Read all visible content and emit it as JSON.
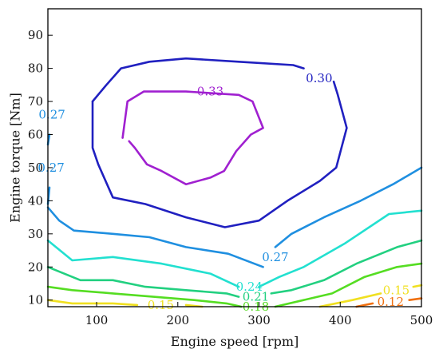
{
  "chart_data": {
    "type": "contour",
    "xlabel": "Engine speed [rpm]",
    "ylabel": "Engine torque [Nm]",
    "xlim": [
      40,
      500
    ],
    "ylim": [
      8,
      98
    ],
    "xticks": [
      "100",
      "200",
      "300",
      "400",
      "500"
    ],
    "yticks": [
      "10",
      "20",
      "30",
      "40",
      "50",
      "60",
      "70",
      "80",
      "90"
    ],
    "grid": false,
    "contours": [
      {
        "level": 0.33,
        "color": "#a020d0",
        "segments": [
          [
            [
              132,
              59
            ],
            [
              138,
              70
            ],
            [
              158,
              73
            ],
            [
              210,
              73
            ],
            [
              275,
              72
            ],
            [
              292,
              70
            ],
            [
              305,
              62
            ],
            [
              290,
              60
            ],
            [
              272,
              55
            ],
            [
              257,
              49
            ],
            [
              240,
              47
            ],
            [
              210,
              45
            ],
            [
              180,
              49
            ],
            [
              162,
              51
            ],
            [
              147,
              56
            ],
            [
              140,
              58
            ]
          ]
        ],
        "labels": [
          {
            "text": "0.33",
            "x": 240,
            "y": 73
          }
        ]
      },
      {
        "level": 0.3,
        "color": "#2020c0",
        "segments": [
          [
            [
              95,
              70
            ],
            [
              112,
              75
            ],
            [
              130,
              80
            ],
            [
              165,
              82
            ],
            [
              210,
              83
            ],
            [
              275,
              82
            ],
            [
              342,
              81
            ],
            [
              355,
              80
            ]
          ],
          [
            [
              392,
              76
            ],
            [
              397,
              72
            ],
            [
              408,
              62
            ],
            [
              395,
              50
            ],
            [
              375,
              46
            ],
            [
              335,
              40
            ],
            [
              300,
              34
            ],
            [
              258,
              32
            ],
            [
              210,
              35
            ],
            [
              160,
              39
            ],
            [
              120,
              41
            ],
            [
              102,
              51
            ],
            [
              95,
              56
            ],
            [
              95,
              70
            ]
          ]
        ],
        "labels": [
          {
            "text": "0.30",
            "x": 374,
            "y": 77
          }
        ]
      },
      {
        "level": 0.27,
        "color": "#1f8fe0",
        "segments": [
          [
            [
              40,
              38
            ],
            [
              54,
              34
            ],
            [
              72,
              31
            ],
            [
              120,
              30
            ],
            [
              165,
              29
            ],
            [
              210,
              26
            ],
            [
              262,
              24
            ],
            [
              305,
              20
            ]
          ],
          [
            [
              320,
              26
            ],
            [
              340,
              30
            ],
            [
              380,
              35
            ],
            [
              425,
              40
            ],
            [
              465,
              45
            ],
            [
              500,
              50
            ]
          ],
          [
            [
              40,
              39
            ],
            [
              42,
              44
            ]
          ],
          [
            [
              40,
              57
            ],
            [
              42,
              60
            ]
          ]
        ],
        "labels": [
          {
            "text": "0.27",
            "x": 320,
            "y": 23
          },
          {
            "text": "0.27",
            "x": 44,
            "y": 50
          },
          {
            "text": "0.27",
            "x": 45,
            "y": 66
          }
        ]
      },
      {
        "level": 0.24,
        "color": "#22e0d0",
        "segments": [
          [
            [
              40,
              28
            ],
            [
              70,
              22
            ],
            [
              120,
              23
            ],
            [
              180,
              21
            ],
            [
              240,
              18
            ],
            [
              275,
              14
            ]
          ],
          [
            [
              300,
              14
            ],
            [
              325,
              17
            ],
            [
              355,
              20
            ],
            [
              405,
              27
            ],
            [
              460,
              36
            ],
            [
              500,
              37
            ]
          ]
        ],
        "labels": [
          {
            "text": "0.24",
            "x": 288,
            "y": 14
          }
        ]
      },
      {
        "level": 0.21,
        "color": "#22d080",
        "segments": [
          [
            [
              40,
              20
            ],
            [
              80,
              16
            ],
            [
              120,
              16
            ],
            [
              160,
              14
            ],
            [
              210,
              13
            ],
            [
              260,
              12
            ],
            [
              275,
              11
            ]
          ],
          [
            [
              315,
              12
            ],
            [
              340,
              13
            ],
            [
              380,
              16
            ],
            [
              420,
              21
            ],
            [
              470,
              26
            ],
            [
              500,
              28
            ]
          ]
        ],
        "labels": [
          {
            "text": "0.21",
            "x": 296,
            "y": 11
          }
        ]
      },
      {
        "level": 0.18,
        "color": "#55dd22",
        "segments": [
          [
            [
              40,
              14
            ],
            [
              70,
              13
            ],
            [
              120,
              12
            ],
            [
              170,
              11
            ],
            [
              220,
              10
            ],
            [
              260,
              9
            ],
            [
              278,
              8
            ]
          ],
          [
            [
              320,
              8
            ],
            [
              355,
              10
            ],
            [
              390,
              12
            ],
            [
              430,
              17
            ],
            [
              470,
              20
            ],
            [
              500,
              21
            ]
          ]
        ],
        "labels": [
          {
            "text": "0.18",
            "x": 296,
            "y": 8
          }
        ]
      },
      {
        "level": 0.15,
        "color": "#f0e020",
        "segments": [
          [
            [
              40,
              10
            ],
            [
              70,
              9
            ],
            [
              120,
              9
            ],
            [
              150,
              8.5
            ]
          ],
          [
            [
              210,
              8.5
            ],
            [
              230,
              8
            ]
          ],
          [
            [
              375,
              8
            ],
            [
              415,
              10
            ],
            [
              450,
              12
            ]
          ],
          [
            [
              490,
              14
            ],
            [
              500,
              14.5
            ]
          ]
        ],
        "labels": [
          {
            "text": "0.15",
            "x": 179,
            "y": 8.5
          },
          {
            "text": "0.15",
            "x": 469,
            "y": 13
          }
        ]
      },
      {
        "level": 0.12,
        "color": "#f07010",
        "segments": [
          [
            [
              420,
              8
            ],
            [
              440,
              9
            ]
          ],
          [
            [
              485,
              10
            ],
            [
              500,
              10.5
            ]
          ]
        ],
        "labels": [
          {
            "text": "0.12",
            "x": 462,
            "y": 9.5
          }
        ]
      }
    ]
  }
}
